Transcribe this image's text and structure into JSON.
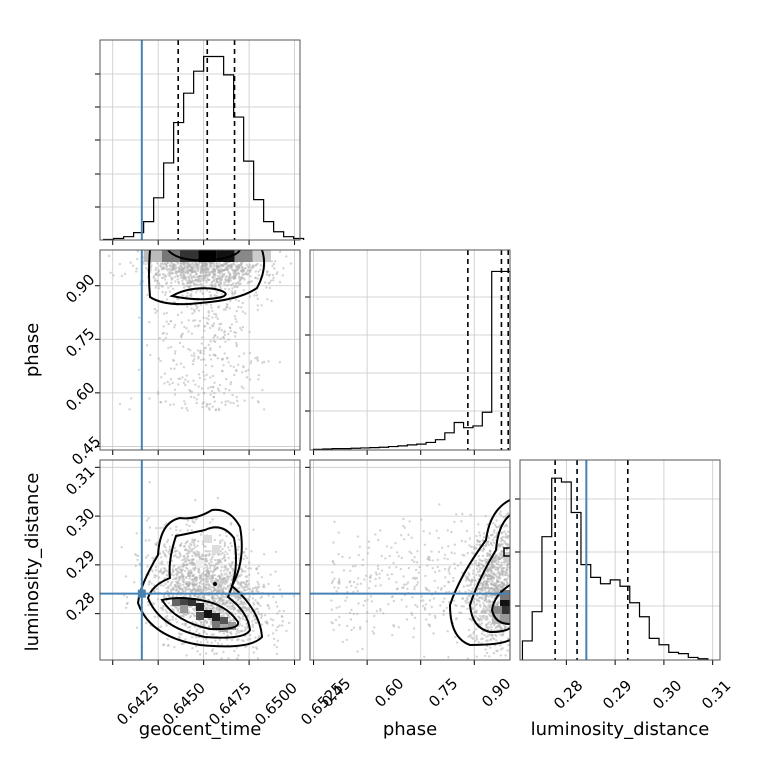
{
  "figure": {
    "type": "corner_plot",
    "truth_color": "#4682b4",
    "hist_color": "#000000",
    "scatter_color": "#b0b0b0",
    "grid": true
  },
  "chart_data": [
    {
      "type": "bar",
      "panel": "geocent_time-hist",
      "xlabel": "",
      "xlim": [
        0.6418,
        0.6528
      ],
      "bin_edges": [
        0.642,
        0.64255,
        0.6431,
        0.64365,
        0.6442,
        0.64475,
        0.6453,
        0.64585,
        0.6464,
        0.64695,
        0.6475,
        0.64805,
        0.6486,
        0.64915,
        0.6497,
        0.65025,
        0.6508,
        0.65135,
        0.6519,
        0.65245,
        0.653
      ],
      "values": [
        0.3,
        0.8,
        1.8,
        4,
        10,
        23,
        42,
        64,
        80,
        92,
        100,
        100,
        90,
        67,
        43,
        22,
        10,
        4.5,
        1.8,
        0.8
      ],
      "quantile_lines": [
        0.6461,
        0.6477,
        0.6492
      ],
      "truth": 0.6441
    },
    {
      "type": "scatter",
      "panel": "geocent_time-phase",
      "ylabel": "phase",
      "xlim": [
        0.6418,
        0.6528
      ],
      "ylim": [
        0.44,
        1.0
      ],
      "yticks": [
        "0.45",
        "0.60",
        "0.75",
        "0.90"
      ],
      "truth_x": 0.6441
    },
    {
      "type": "bar",
      "panel": "phase-hist",
      "xlim": [
        0.44,
        1.0
      ],
      "bin_edges": [
        0.45,
        0.4763,
        0.5025,
        0.5288,
        0.555,
        0.5813,
        0.6075,
        0.6338,
        0.66,
        0.6863,
        0.7125,
        0.7388,
        0.765,
        0.7913,
        0.8175,
        0.8438,
        0.87,
        0.8963,
        0.9225,
        0.9488,
        0.975,
        1.0
      ],
      "values": [
        0.2,
        0.3,
        0.4,
        0.4,
        0.5,
        0.6,
        0.7,
        0.8,
        1.0,
        1.2,
        1.5,
        1.7,
        2.2,
        3.0,
        5,
        8,
        6.5,
        7,
        11,
        52,
        52
      ],
      "quantile_lines": [
        0.882,
        0.976,
        0.995
      ]
    },
    {
      "type": "scatter",
      "panel": "geocent_time-luminosity_distance",
      "xlabel": "geocent_time",
      "ylabel": "luminosity_distance",
      "xlim": [
        0.6418,
        0.6528
      ],
      "ylim": [
        0.2705,
        0.3115
      ],
      "xticks": [
        "0.6425",
        "0.6450",
        "0.6475",
        "0.6500",
        "0.6525"
      ],
      "yticks": [
        "0.28",
        "0.29",
        "0.30",
        "0.31"
      ],
      "truth_x": 0.6441,
      "truth_y": 0.2841
    },
    {
      "type": "scatter",
      "panel": "phase-luminosity_distance",
      "xlabel": "phase",
      "xlim": [
        0.44,
        1.0
      ],
      "ylim": [
        0.2705,
        0.3115
      ],
      "xticks": [
        "0.45",
        "0.60",
        "0.75",
        "0.90"
      ],
      "truth_y": 0.2841
    },
    {
      "type": "bar",
      "panel": "luminosity_distance-hist",
      "xlabel": "luminosity_distance",
      "xlim": [
        0.2705,
        0.3115
      ],
      "xticks": [
        "0.28",
        "0.29",
        "0.30",
        "0.31"
      ],
      "bin_edges": [
        0.271,
        0.273,
        0.275,
        0.277,
        0.279,
        0.281,
        0.283,
        0.285,
        0.287,
        0.289,
        0.291,
        0.293,
        0.295,
        0.297,
        0.299,
        0.301,
        0.303,
        0.305,
        0.307,
        0.309
      ],
      "values": [
        15,
        38,
        97,
        143,
        140,
        116,
        75,
        65,
        60,
        63,
        58,
        45,
        34,
        17,
        12,
        6,
        5,
        2,
        1
      ],
      "quantile_lines": [
        0.2777,
        0.2822,
        0.2926
      ],
      "truth": 0.2841
    }
  ],
  "labels": {
    "geocent_time": "geocent_time",
    "phase": "phase",
    "luminosity_distance": "luminosity_distance"
  },
  "ticks": {
    "geocent_time": [
      "0.6425",
      "0.6450",
      "0.6475",
      "0.6500",
      "0.6525"
    ],
    "phase_x": [
      "0.45",
      "0.60",
      "0.75",
      "0.90"
    ],
    "phase_y": [
      "0.45",
      "0.60",
      "0.75",
      "0.90"
    ],
    "ld_x": [
      "0.28",
      "0.29",
      "0.30",
      "0.31"
    ],
    "ld_y": [
      "0.28",
      "0.29",
      "0.30",
      "0.31"
    ]
  }
}
